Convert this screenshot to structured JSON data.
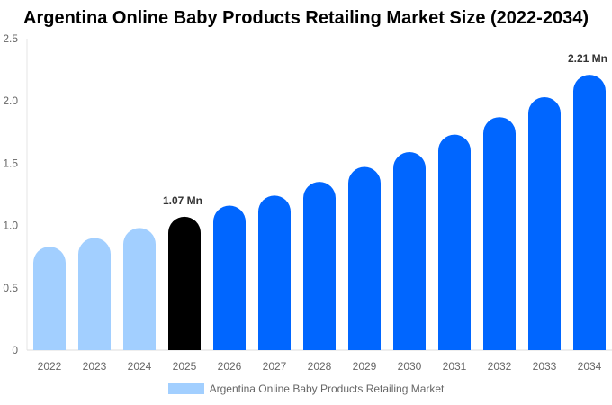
{
  "chart_data": {
    "type": "bar",
    "title": "Argentina Online Baby Products Retailing Market Size (2022-2034)",
    "categories": [
      "2022",
      "2023",
      "2024",
      "2025",
      "2026",
      "2027",
      "2028",
      "2029",
      "2030",
      "2031",
      "2032",
      "2033",
      "2034"
    ],
    "series": [
      {
        "name": "Argentina Online Baby Products Retailing Market",
        "values": [
          0.83,
          0.9,
          0.98,
          1.07,
          1.16,
          1.24,
          1.35,
          1.47,
          1.59,
          1.73,
          1.87,
          2.03,
          2.21
        ]
      }
    ],
    "data_labels": {
      "3": "1.07 Mn",
      "12": "2.21 Mn"
    },
    "yticks": [
      "0",
      "0.5",
      "1.0",
      "1.5",
      "2.0",
      "2.5"
    ],
    "ylim": [
      0,
      2.5
    ],
    "grid": false,
    "legend_position": "bottom",
    "colors": {
      "historical": "#a2cfff",
      "base_year": "#000000",
      "forecast": "#0066ff"
    }
  }
}
